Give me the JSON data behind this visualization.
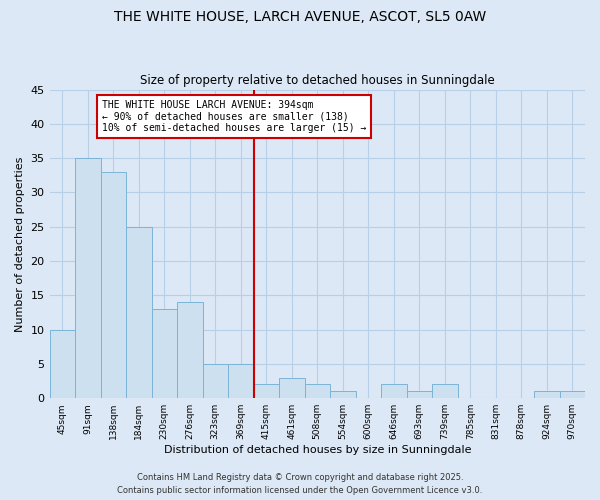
{
  "title": "THE WHITE HOUSE, LARCH AVENUE, ASCOT, SL5 0AW",
  "subtitle": "Size of property relative to detached houses in Sunningdale",
  "xlabel": "Distribution of detached houses by size in Sunningdale",
  "ylabel": "Number of detached properties",
  "bar_color": "#cce0f0",
  "bar_edge_color": "#7ab4d8",
  "background_color": "#dce8f5",
  "plot_bg_color": "#dce8f5",
  "grid_color": "#b8cfe8",
  "categories": [
    "45sqm",
    "91sqm",
    "138sqm",
    "184sqm",
    "230sqm",
    "276sqm",
    "323sqm",
    "369sqm",
    "415sqm",
    "461sqm",
    "508sqm",
    "554sqm",
    "600sqm",
    "646sqm",
    "693sqm",
    "739sqm",
    "785sqm",
    "831sqm",
    "878sqm",
    "924sqm",
    "970sqm"
  ],
  "values": [
    10,
    35,
    33,
    25,
    13,
    14,
    5,
    5,
    2,
    3,
    2,
    1,
    0,
    2,
    1,
    2,
    0,
    0,
    0,
    1,
    1
  ],
  "ylim": [
    0,
    45
  ],
  "yticks": [
    0,
    5,
    10,
    15,
    20,
    25,
    30,
    35,
    40,
    45
  ],
  "vline_x": 7.5,
  "vline_color": "#cc0000",
  "annotation_text": "THE WHITE HOUSE LARCH AVENUE: 394sqm\n← 90% of detached houses are smaller (138)\n10% of semi-detached houses are larger (15) →",
  "footer1": "Contains HM Land Registry data © Crown copyright and database right 2025.",
  "footer2": "Contains public sector information licensed under the Open Government Licence v3.0."
}
